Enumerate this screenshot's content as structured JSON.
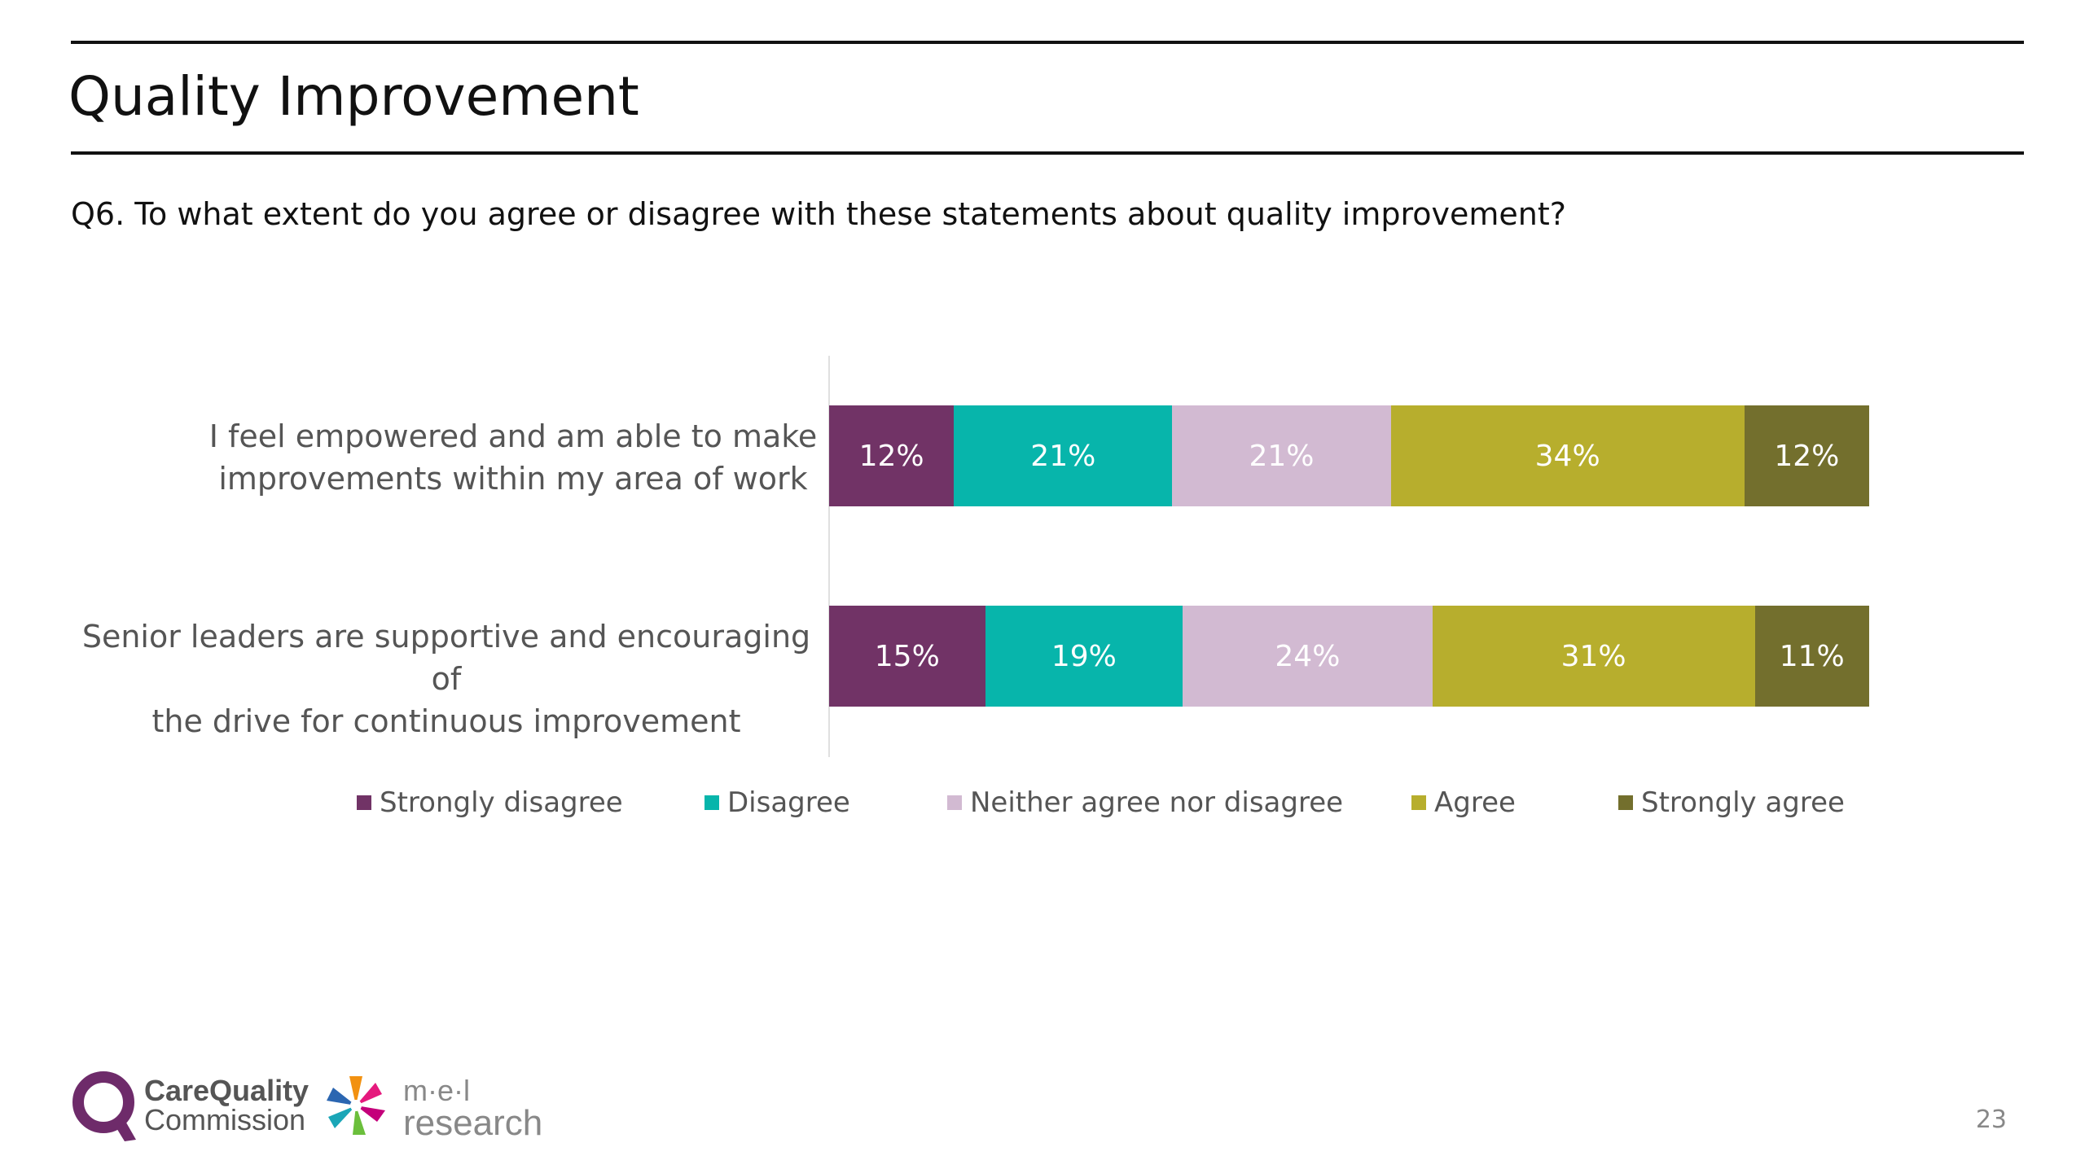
{
  "slide": {
    "title": "Quality Improvement",
    "question": "Q6. To what extent do you agree or disagree with these statements about quality improvement?",
    "page_number": "23"
  },
  "logos": {
    "cqc_line1": "CareQuality",
    "cqc_line2": "Commission",
    "mel_line1": "m·e·l",
    "mel_line2": "research"
  },
  "colors": {
    "strongly_disagree": "#713366",
    "disagree": "#07b5ab",
    "neither": "#d2bad2",
    "agree": "#b7ae2d",
    "strongly_agree": "#736f2d"
  },
  "chart_data": {
    "type": "bar",
    "orientation": "horizontal",
    "stacked": true,
    "categories": [
      "I feel empowered and am able to make improvements within my area of work",
      "Senior leaders are supportive and encouraging of the drive for continuous improvement"
    ],
    "category_label_lines": [
      [
        "I feel empowered and am able to make",
        "improvements within my area of work"
      ],
      [
        "Senior leaders are supportive and encouraging of",
        "the drive for continuous improvement"
      ]
    ],
    "series": [
      {
        "name": "Strongly disagree",
        "values": [
          12,
          15
        ],
        "labels": [
          "12%",
          "15%"
        ],
        "color": "#713366"
      },
      {
        "name": "Disagree",
        "values": [
          21,
          19
        ],
        "labels": [
          "21%",
          "19%"
        ],
        "color": "#07b5ab"
      },
      {
        "name": "Neither agree nor disagree",
        "values": [
          21,
          24
        ],
        "labels": [
          "21%",
          "24%"
        ],
        "color": "#d2bad2"
      },
      {
        "name": "Agree",
        "values": [
          34,
          31
        ],
        "labels": [
          "34%",
          "31%"
        ],
        "color": "#b7ae2d"
      },
      {
        "name": "Strongly agree",
        "values": [
          12,
          11
        ],
        "labels": [
          "12%",
          "11%"
        ],
        "color": "#736f2d"
      }
    ],
    "xlim": [
      0,
      100
    ],
    "legend_position": "bottom",
    "grid": false
  }
}
